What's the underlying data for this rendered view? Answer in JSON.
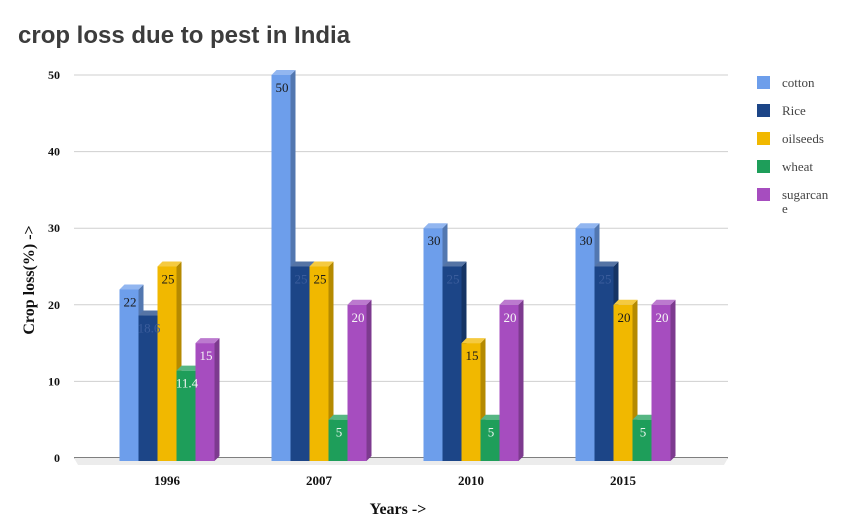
{
  "chart_data": {
    "type": "bar",
    "title": "crop loss due to pest in India",
    "xlabel": "Years ->",
    "ylabel": "Crop  loss(%) ->",
    "categories": [
      "1996",
      "2007",
      "2010",
      "2015"
    ],
    "ylim": [
      0,
      50
    ],
    "yticks": [
      0,
      10,
      20,
      30,
      40,
      50
    ],
    "grid": true,
    "legend_position": "right",
    "series": [
      {
        "name": "cotton",
        "color": "#6d9eeb",
        "values": [
          22,
          50,
          30,
          30
        ],
        "labels": [
          "22",
          "50",
          "30",
          "30"
        ]
      },
      {
        "name": "Rice",
        "color": "#1c4587",
        "values": [
          18.6,
          25,
          25,
          25
        ],
        "labels": [
          "18.6",
          "25",
          "25",
          "25"
        ]
      },
      {
        "name": "oilseeds",
        "color": "#f1b800",
        "values": [
          25,
          25,
          15,
          20
        ],
        "labels": [
          "25",
          "25",
          "15",
          "20"
        ]
      },
      {
        "name": "wheat",
        "color": "#1e9e5a",
        "values": [
          11.4,
          5,
          5,
          5
        ],
        "labels": [
          "11.4",
          "5",
          "5",
          "5"
        ]
      },
      {
        "name": "sugarcane",
        "color": "#a64dbf",
        "values": [
          15,
          20,
          20,
          20
        ],
        "labels": [
          "15",
          "20",
          "20",
          "20"
        ],
        "legend_lines": [
          "sugarcan",
          "e"
        ]
      }
    ]
  }
}
